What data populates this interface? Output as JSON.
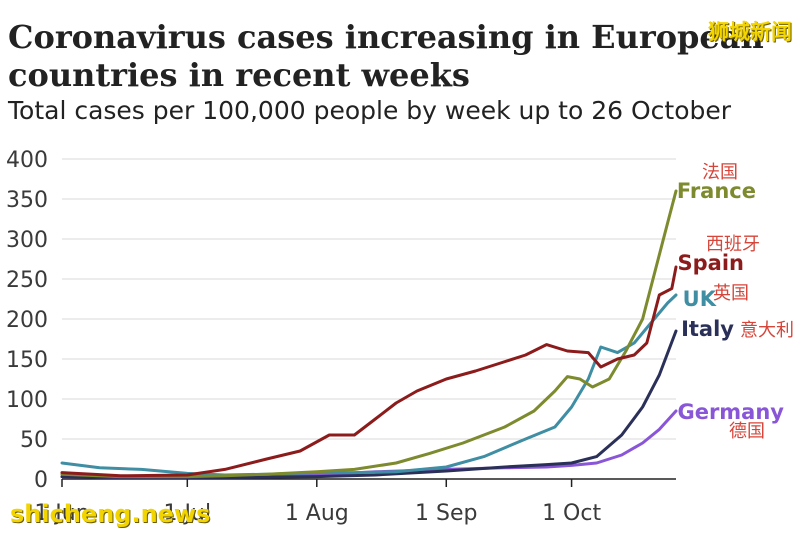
{
  "header": {
    "title": "Coronavirus cases increasing in European countries in recent weeks",
    "subtitle": "Total cases per 100,000 people by week up to 26 October"
  },
  "watermark": {
    "cn": "狮城新闻",
    "en": "shicheng.news"
  },
  "chart_data": {
    "type": "line",
    "title": "Coronavirus cases increasing in European countries in recent weeks",
    "subtitle": "Total cases per 100,000 people by week up to 26 October",
    "xlabel": "",
    "ylabel": "",
    "ylim": [
      0,
      400
    ],
    "yticks": [
      0,
      50,
      100,
      150,
      200,
      250,
      300,
      350,
      400
    ],
    "xlim": [
      "2020-06-01",
      "2020-10-26"
    ],
    "xticks": [
      {
        "date": "2020-06-01",
        "label": "1 Jun"
      },
      {
        "date": "2020-07-01",
        "label": "1 Jul"
      },
      {
        "date": "2020-08-01",
        "label": "1 Aug"
      },
      {
        "date": "2020-09-01",
        "label": "1 Sep"
      },
      {
        "date": "2020-10-01",
        "label": "1 Oct"
      }
    ],
    "grid": true,
    "legend": "labels at line ends",
    "series": [
      {
        "name": "France",
        "name_cn": "法国",
        "color": "#7e8a2e",
        "points": [
          [
            "2020-06-01",
            6
          ],
          [
            "2020-06-15",
            3
          ],
          [
            "2020-07-01",
            3
          ],
          [
            "2020-07-10",
            4
          ],
          [
            "2020-07-20",
            6
          ],
          [
            "2020-08-01",
            9
          ],
          [
            "2020-08-10",
            12
          ],
          [
            "2020-08-20",
            20
          ],
          [
            "2020-08-28",
            32
          ],
          [
            "2020-09-05",
            45
          ],
          [
            "2020-09-15",
            65
          ],
          [
            "2020-09-22",
            85
          ],
          [
            "2020-09-27",
            110
          ],
          [
            "2020-09-30",
            128
          ],
          [
            "2020-10-03",
            125
          ],
          [
            "2020-10-06",
            115
          ],
          [
            "2020-10-10",
            125
          ],
          [
            "2020-10-14",
            160
          ],
          [
            "2020-10-18",
            200
          ],
          [
            "2020-10-21",
            260
          ],
          [
            "2020-10-24",
            320
          ],
          [
            "2020-10-26",
            360
          ]
        ]
      },
      {
        "name": "Spain",
        "name_cn": "西班牙",
        "color": "#8c1c1c",
        "points": [
          [
            "2020-06-01",
            8
          ],
          [
            "2020-06-15",
            4
          ],
          [
            "2020-07-01",
            5
          ],
          [
            "2020-07-10",
            12
          ],
          [
            "2020-07-20",
            25
          ],
          [
            "2020-07-28",
            35
          ],
          [
            "2020-08-04",
            55
          ],
          [
            "2020-08-10",
            55
          ],
          [
            "2020-08-15",
            75
          ],
          [
            "2020-08-20",
            95
          ],
          [
            "2020-08-25",
            110
          ],
          [
            "2020-09-01",
            125
          ],
          [
            "2020-09-08",
            135
          ],
          [
            "2020-09-14",
            145
          ],
          [
            "2020-09-20",
            155
          ],
          [
            "2020-09-25",
            168
          ],
          [
            "2020-09-30",
            160
          ],
          [
            "2020-10-05",
            158
          ],
          [
            "2020-10-08",
            140
          ],
          [
            "2020-10-12",
            150
          ],
          [
            "2020-10-16",
            155
          ],
          [
            "2020-10-19",
            170
          ],
          [
            "2020-10-22",
            230
          ],
          [
            "2020-10-25",
            238
          ],
          [
            "2020-10-26",
            265
          ]
        ]
      },
      {
        "name": "UK",
        "name_cn": "英国",
        "color": "#3f8ea3",
        "points": [
          [
            "2020-06-01",
            20
          ],
          [
            "2020-06-10",
            14
          ],
          [
            "2020-06-20",
            12
          ],
          [
            "2020-07-01",
            7
          ],
          [
            "2020-07-10",
            5
          ],
          [
            "2020-07-20",
            6
          ],
          [
            "2020-08-01",
            8
          ],
          [
            "2020-08-10",
            8
          ],
          [
            "2020-08-20",
            9
          ],
          [
            "2020-09-01",
            15
          ],
          [
            "2020-09-10",
            28
          ],
          [
            "2020-09-20",
            50
          ],
          [
            "2020-09-27",
            65
          ],
          [
            "2020-10-01",
            90
          ],
          [
            "2020-10-05",
            125
          ],
          [
            "2020-10-08",
            165
          ],
          [
            "2020-10-12",
            158
          ],
          [
            "2020-10-16",
            170
          ],
          [
            "2020-10-20",
            195
          ],
          [
            "2020-10-24",
            220
          ],
          [
            "2020-10-26",
            230
          ]
        ]
      },
      {
        "name": "Italy",
        "name_cn": "意大利",
        "color": "#2a3058",
        "points": [
          [
            "2020-06-01",
            3
          ],
          [
            "2020-06-15",
            2
          ],
          [
            "2020-07-01",
            2
          ],
          [
            "2020-07-15",
            2
          ],
          [
            "2020-08-01",
            3
          ],
          [
            "2020-08-15",
            5
          ],
          [
            "2020-09-01",
            10
          ],
          [
            "2020-09-15",
            15
          ],
          [
            "2020-09-25",
            18
          ],
          [
            "2020-10-01",
            20
          ],
          [
            "2020-10-07",
            28
          ],
          [
            "2020-10-13",
            55
          ],
          [
            "2020-10-18",
            90
          ],
          [
            "2020-10-22",
            130
          ],
          [
            "2020-10-26",
            185
          ]
        ]
      },
      {
        "name": "Germany",
        "name_cn": "德国",
        "color": "#8a56d8",
        "points": [
          [
            "2020-06-01",
            3
          ],
          [
            "2020-06-15",
            2
          ],
          [
            "2020-07-01",
            2
          ],
          [
            "2020-07-15",
            3
          ],
          [
            "2020-08-01",
            5
          ],
          [
            "2020-08-15",
            9
          ],
          [
            "2020-09-01",
            12
          ],
          [
            "2020-09-15",
            14
          ],
          [
            "2020-09-25",
            15
          ],
          [
            "2020-10-01",
            17
          ],
          [
            "2020-10-07",
            20
          ],
          [
            "2020-10-13",
            30
          ],
          [
            "2020-10-18",
            45
          ],
          [
            "2020-10-22",
            62
          ],
          [
            "2020-10-26",
            85
          ]
        ]
      }
    ]
  }
}
